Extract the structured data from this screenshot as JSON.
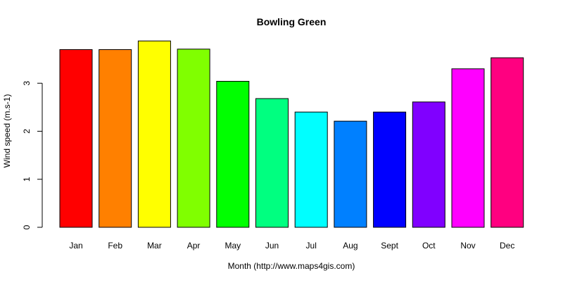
{
  "chart_data": {
    "type": "bar",
    "title": "Bowling Green",
    "xlabel": "Month (http://www.maps4gis.com)",
    "ylabel": "Wind speed (m.s-1)",
    "categories": [
      "Jan",
      "Feb",
      "Mar",
      "Apr",
      "May",
      "Jun",
      "Jul",
      "Aug",
      "Sept",
      "Oct",
      "Nov",
      "Dec"
    ],
    "values": [
      3.7,
      3.7,
      3.88,
      3.71,
      3.04,
      2.68,
      2.4,
      2.21,
      2.4,
      2.61,
      3.3,
      3.53
    ],
    "colors": [
      "#FF0000",
      "#FF8000",
      "#FFFF00",
      "#80FF00",
      "#00FF00",
      "#00FF80",
      "#00FFFF",
      "#0080FF",
      "#0000FF",
      "#8000FF",
      "#FF00FF",
      "#FF0080"
    ],
    "yticks": [
      0,
      1,
      2,
      3
    ],
    "ylim": [
      0,
      3.88
    ],
    "grid": false,
    "legend": "none"
  }
}
